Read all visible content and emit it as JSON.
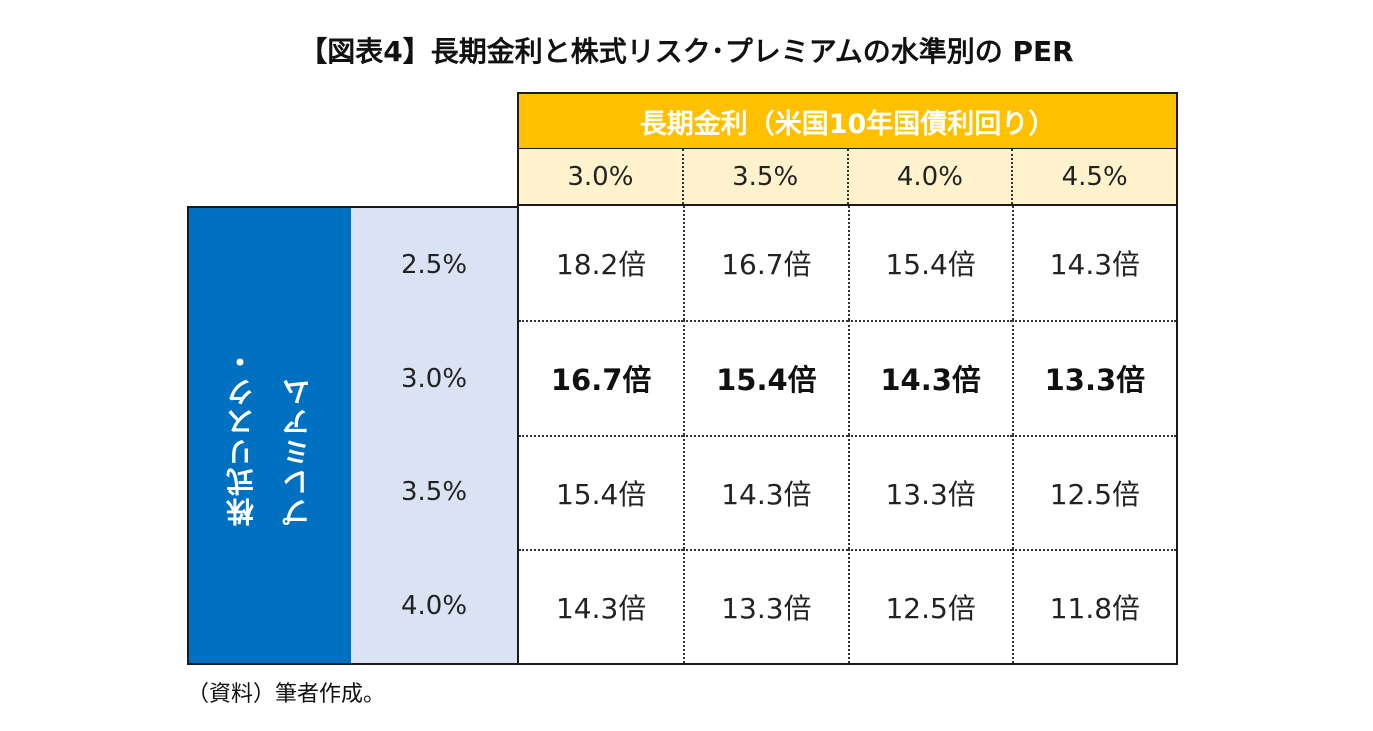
{
  "title": "【図表4】長期金利と株式リスク･プレミアムの水準別の PER",
  "column_header": "長期金利（米国10年国債利回り）",
  "row_header": "株式リスク・\nプレミアム",
  "column_rates": [
    "3.0%",
    "3.5%",
    "4.0%",
    "4.5%"
  ],
  "row_rates": [
    "2.5%",
    "3.0%",
    "3.5%",
    "4.0%"
  ],
  "rows": [
    [
      "18.2倍",
      "16.7倍",
      "15.4倍",
      "14.3倍"
    ],
    [
      "16.7倍",
      "15.4倍",
      "14.3倍",
      "13.3倍"
    ],
    [
      "15.4倍",
      "14.3倍",
      "13.3倍",
      "12.5倍"
    ],
    [
      "14.3倍",
      "13.3倍",
      "12.5倍",
      "11.8倍"
    ]
  ],
  "highlighted_row": 1,
  "colors": {
    "column_header_bg": "#FFC000",
    "column_rates_bg": "#FFF2CC",
    "row_header_bg": "#0070C0",
    "row_rates_bg": "#DAE3F3"
  },
  "source": "（資料）筆者作成。"
}
